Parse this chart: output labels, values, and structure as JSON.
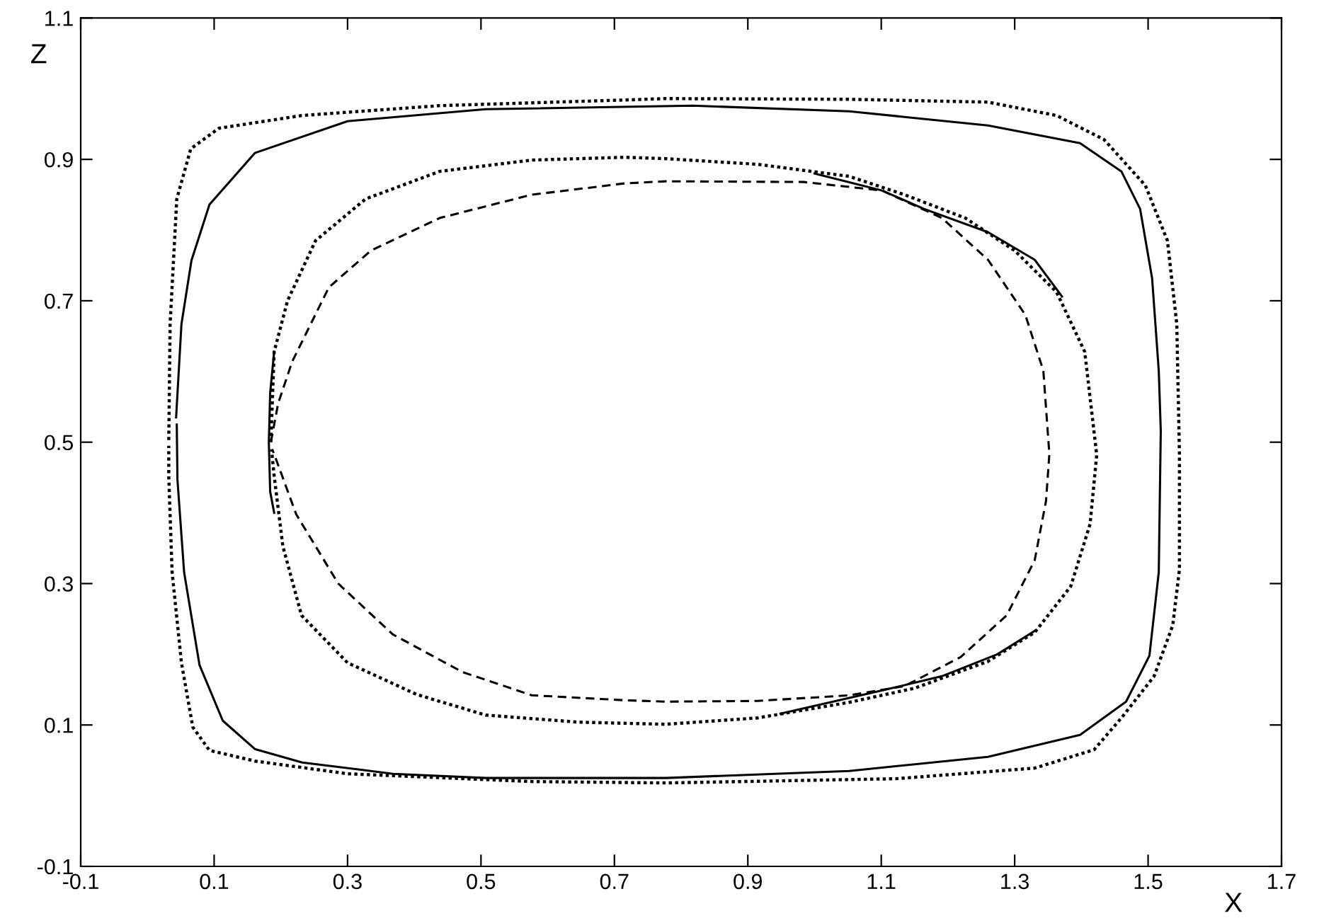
{
  "chart_data": {
    "type": "line",
    "xlabel": "X",
    "ylabel": "Z",
    "xlim": [
      -0.1,
      1.7
    ],
    "ylim": [
      -0.1,
      1.1
    ],
    "xticks": [
      -0.1,
      0.1,
      0.3,
      0.5,
      0.7,
      0.9,
      1.1,
      1.3,
      1.5,
      1.7
    ],
    "yticks": [
      -0.1,
      0.1,
      0.3,
      0.5,
      0.7,
      0.9,
      1.1
    ],
    "grid": false,
    "series": [
      {
        "color": "#000000",
        "line_style": "dotted",
        "x": [
          0.032,
          0.034,
          0.044,
          0.065,
          0.107,
          0.231,
          0.438,
          0.715,
          0.777,
          1.052,
          1.26,
          1.363,
          1.434,
          1.496,
          1.529,
          1.543,
          1.547,
          1.547,
          1.537,
          1.509,
          1.46,
          1.419,
          1.33,
          1.122,
          0.777,
          0.576,
          0.3,
          0.161,
          0.093,
          0.068,
          0.051,
          0.037,
          0.032,
          0.032
        ],
        "values": [
          0.503,
          0.667,
          0.844,
          0.915,
          0.944,
          0.962,
          0.976,
          0.984,
          0.986,
          0.985,
          0.981,
          0.962,
          0.928,
          0.863,
          0.785,
          0.667,
          0.483,
          0.32,
          0.241,
          0.169,
          0.11,
          0.065,
          0.039,
          0.024,
          0.018,
          0.02,
          0.031,
          0.049,
          0.064,
          0.097,
          0.188,
          0.316,
          0.451,
          0.495
        ]
      },
      {
        "color": "#000000",
        "line_style": "solid",
        "x": [
          0.043,
          0.051,
          0.066,
          0.093,
          0.161,
          0.3,
          0.507,
          0.818,
          1.052,
          1.26,
          1.398,
          1.46,
          1.488,
          1.506,
          1.516,
          1.519,
          1.516,
          1.502,
          1.467,
          1.398,
          1.26,
          1.052,
          0.777,
          0.507,
          0.368,
          0.232,
          0.161,
          0.113,
          0.078,
          0.055,
          0.045,
          0.044
        ],
        "values": [
          0.535,
          0.667,
          0.757,
          0.836,
          0.909,
          0.954,
          0.971,
          0.976,
          0.968,
          0.948,
          0.923,
          0.883,
          0.83,
          0.732,
          0.601,
          0.516,
          0.316,
          0.198,
          0.133,
          0.086,
          0.055,
          0.035,
          0.025,
          0.025,
          0.031,
          0.047,
          0.066,
          0.106,
          0.185,
          0.316,
          0.447,
          0.525
        ]
      },
      {
        "color": "#000000",
        "line_style": "dotted",
        "x": [
          0.185,
          0.19,
          0.21,
          0.252,
          0.327,
          0.438,
          0.576,
          0.715,
          0.777,
          0.915,
          1.052,
          1.135,
          1.226,
          1.3,
          1.363,
          1.405,
          1.423,
          1.413,
          1.384,
          1.33,
          1.26,
          1.15,
          1.052,
          0.915,
          0.777,
          0.646,
          0.507,
          0.404,
          0.3,
          0.231,
          0.203,
          0.19,
          0.186
        ],
        "values": [
          0.5,
          0.628,
          0.7,
          0.785,
          0.844,
          0.883,
          0.899,
          0.903,
          0.901,
          0.893,
          0.876,
          0.85,
          0.817,
          0.771,
          0.712,
          0.628,
          0.482,
          0.384,
          0.296,
          0.231,
          0.19,
          0.152,
          0.132,
          0.11,
          0.101,
          0.104,
          0.114,
          0.143,
          0.188,
          0.255,
          0.353,
          0.452,
          0.49
        ]
      },
      {
        "color": "#000000",
        "line_style": "dashed",
        "x": [
          0.185,
          0.196,
          0.217,
          0.272,
          0.335,
          0.438,
          0.576,
          0.715,
          0.777,
          0.984,
          1.101,
          1.191,
          1.26,
          1.316,
          1.343,
          1.352,
          1.347,
          1.33,
          1.288,
          1.219,
          1.135,
          1.052,
          0.915,
          0.777,
          0.715,
          0.576,
          0.472,
          0.368,
          0.286,
          0.223,
          0.19,
          0.187
        ],
        "values": [
          0.5,
          0.555,
          0.614,
          0.719,
          0.771,
          0.817,
          0.85,
          0.866,
          0.869,
          0.868,
          0.856,
          0.817,
          0.758,
          0.68,
          0.601,
          0.483,
          0.417,
          0.333,
          0.255,
          0.196,
          0.155,
          0.142,
          0.134,
          0.133,
          0.135,
          0.142,
          0.175,
          0.228,
          0.3,
          0.398,
          0.483,
          0.49
        ]
      },
      {
        "color": "#000000",
        "line_style": "solid",
        "x": [
          0.19,
          0.184,
          0.182,
          0.184,
          0.19
        ],
        "values": [
          0.628,
          0.57,
          0.5,
          0.43,
          0.4
        ]
      },
      {
        "color": "#000000",
        "line_style": "solid",
        "x": [
          1.0,
          1.101,
          1.164,
          1.26,
          1.33,
          1.371
        ],
        "values": [
          0.88,
          0.856,
          0.83,
          0.797,
          0.758,
          0.706
        ]
      },
      {
        "color": "#000000",
        "line_style": "solid",
        "x": [
          0.949,
          1.102,
          1.191,
          1.274,
          1.33
        ],
        "values": [
          0.116,
          0.149,
          0.169,
          0.2,
          0.233
        ]
      }
    ]
  }
}
